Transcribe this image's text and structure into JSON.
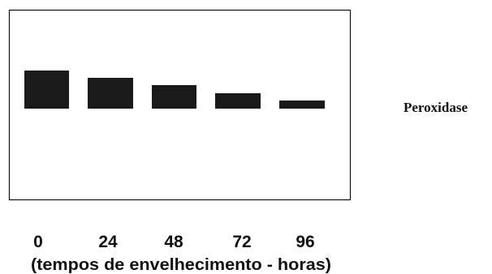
{
  "band_label": "Peroxidase",
  "lanes": [
    "0",
    "24",
    "48",
    "72",
    "96"
  ],
  "axis_caption": "(tempos de envelhecimento - horas)"
}
